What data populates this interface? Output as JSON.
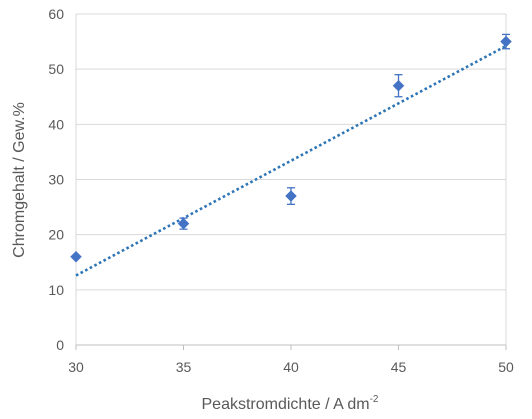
{
  "chart_data": {
    "type": "scatter",
    "title": "",
    "xlabel": "Peakstromdichte / A dm",
    "xlabel_superscript": "-2",
    "ylabel": "Chromgehalt / Gew.%",
    "xlim": [
      30,
      50
    ],
    "ylim": [
      0,
      60
    ],
    "xticks": [
      30,
      35,
      40,
      45,
      50
    ],
    "yticks": [
      0,
      10,
      20,
      30,
      40,
      50,
      60
    ],
    "grid": "horizontal",
    "legend": "none",
    "series": [
      {
        "marker": "diamond",
        "color": "#4472C4",
        "points": [
          {
            "x": 30,
            "y": 16,
            "err": 0
          },
          {
            "x": 35,
            "y": 22,
            "err": 1
          },
          {
            "x": 40,
            "y": 27,
            "err": 1.5
          },
          {
            "x": 45,
            "y": 47,
            "err": 2
          },
          {
            "x": 50,
            "y": 55,
            "err": 1.3
          }
        ]
      }
    ],
    "trendline": {
      "type": "linear",
      "style": "dotted",
      "color": "#2E75B6",
      "x": [
        30,
        50
      ],
      "y": [
        12.6,
        54.2
      ]
    }
  }
}
